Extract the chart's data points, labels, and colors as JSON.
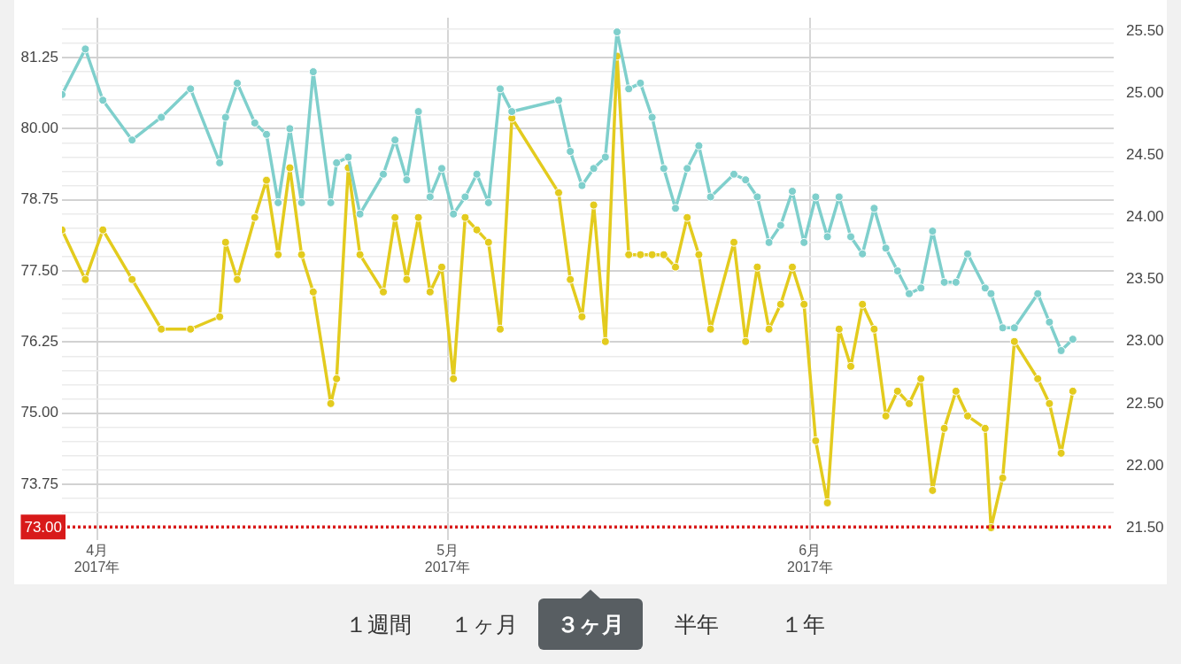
{
  "chart_data": [
    {
      "type": "line",
      "marker": "circle",
      "line_style": "solid",
      "grid": true,
      "legend": false,
      "x": [
        "2017-03-29",
        "2017-03-31",
        "2017-04-01T12:00",
        "2017-04-04",
        "2017-04-06T12:00",
        "2017-04-09",
        "2017-04-11T12:00",
        "2017-04-12",
        "2017-04-13",
        "2017-04-14T12:00",
        "2017-04-15T12:00",
        "2017-04-16T12:00",
        "2017-04-17T12:00",
        "2017-04-18T12:00",
        "2017-04-19T12:00",
        "2017-04-21",
        "2017-04-21T12:00",
        "2017-04-22T12:00",
        "2017-04-23T12:00",
        "2017-04-25T12:00",
        "2017-04-26T12:00",
        "2017-04-27T12:00",
        "2017-04-28T12:00",
        "2017-04-29T12:00",
        "2017-04-30T12:00",
        "2017-05-01T12:00",
        "2017-05-02T12:00",
        "2017-05-03T12:00",
        "2017-05-04T12:00",
        "2017-05-05T12:00",
        "2017-05-06T12:00",
        "2017-05-10T12:00",
        "2017-05-11T12:00",
        "2017-05-12T12:00",
        "2017-05-13T12:00",
        "2017-05-14T12:00",
        "2017-05-15T12:00",
        "2017-05-16T12:00",
        "2017-05-17T12:00",
        "2017-05-18T12:00",
        "2017-05-19T12:00",
        "2017-05-20T12:00",
        "2017-05-21T12:00",
        "2017-05-22T12:00",
        "2017-05-23T12:00",
        "2017-05-25T12:00",
        "2017-05-26T12:00",
        "2017-05-27T12:00",
        "2017-05-28T12:00",
        "2017-05-29T12:00",
        "2017-05-30T12:00",
        "2017-05-31T12:00",
        "2017-06-01T12:00",
        "2017-06-02T12:00",
        "2017-06-03T12:00",
        "2017-06-04T12:00",
        "2017-06-05T12:00",
        "2017-06-06T12:00",
        "2017-06-07T12:00",
        "2017-06-08T12:00",
        "2017-06-09T12:00",
        "2017-06-10T12:00",
        "2017-06-11T12:00",
        "2017-06-12T12:00",
        "2017-06-13T12:00",
        "2017-06-14T12:00",
        "2017-06-16",
        "2017-06-16T12:00",
        "2017-06-17T12:00",
        "2017-06-18T12:00",
        "2017-06-20T12:00",
        "2017-06-21T12:00",
        "2017-06-22T12:00",
        "2017-06-23T12:00"
      ],
      "series": [
        {
          "color": "#7fcfcc",
          "values": [
            80.6,
            81.4,
            80.5,
            79.8,
            80.2,
            80.7,
            79.4,
            80.2,
            80.8,
            80.1,
            79.9,
            78.7,
            80.0,
            78.7,
            81.0,
            78.7,
            79.4,
            79.5,
            78.5,
            79.2,
            79.8,
            79.1,
            80.3,
            78.8,
            79.3,
            78.5,
            78.8,
            79.2,
            78.7,
            80.7,
            80.3,
            80.5,
            79.6,
            79.0,
            79.3,
            79.5,
            81.7,
            80.7,
            80.8,
            80.2,
            79.3,
            78.6,
            79.3,
            79.7,
            78.8,
            79.2,
            79.1,
            78.8,
            78.0,
            78.3,
            78.9,
            78.0,
            78.8,
            78.1,
            78.8,
            78.1,
            77.8,
            78.6,
            77.9,
            77.5,
            77.1,
            77.2,
            78.2,
            77.3,
            77.3,
            77.8,
            77.2,
            77.1,
            76.5,
            76.5,
            77.1,
            76.6,
            76.1,
            76.3
          ]
        },
        {
          "color": "#e3cb1e",
          "axis": "y2",
          "values": [
            23.9,
            23.5,
            23.9,
            23.5,
            23.1,
            23.1,
            23.2,
            23.8,
            23.5,
            24.0,
            24.3,
            23.7,
            24.4,
            23.7,
            23.4,
            22.5,
            22.7,
            24.4,
            23.7,
            23.4,
            24.0,
            23.5,
            24.0,
            23.4,
            23.6,
            22.7,
            24.0,
            23.9,
            23.8,
            23.1,
            24.8,
            24.2,
            23.5,
            23.2,
            24.1,
            23.0,
            25.3,
            23.7,
            23.7,
            23.7,
            23.7,
            23.6,
            24.0,
            23.7,
            23.1,
            23.8,
            23.0,
            23.6,
            23.1,
            23.3,
            23.6,
            23.3,
            22.2,
            21.7,
            23.1,
            22.8,
            23.3,
            23.1,
            22.4,
            22.6,
            22.5,
            22.7,
            21.8,
            22.3,
            22.6,
            22.4,
            22.3,
            21.5,
            21.9,
            23.0,
            22.7,
            22.5,
            22.1,
            22.6
          ]
        }
      ],
      "xlim": [
        "2017-03-29",
        "2017-06-27"
      ],
      "xticks": [
        {
          "value": "2017-04-01",
          "label": "4月\n2017年"
        },
        {
          "value": "2017-05-01",
          "label": "5月\n2017年"
        },
        {
          "value": "2017-06-01",
          "label": "6月\n2017年"
        }
      ],
      "ylim": [
        72.77,
        81.95
      ],
      "yticks": [
        {
          "value": 73.25,
          "label": null
        },
        {
          "value": 73.5,
          "label": null
        },
        {
          "value": 73.75,
          "label": "73.75"
        },
        {
          "value": 74,
          "label": null
        },
        {
          "value": 74.25,
          "label": null
        },
        {
          "value": 74.5,
          "label": null
        },
        {
          "value": 74.75,
          "label": null
        },
        {
          "value": 75,
          "label": "75.00"
        },
        {
          "value": 75.25,
          "label": null
        },
        {
          "value": 75.5,
          "label": null
        },
        {
          "value": 75.75,
          "label": null
        },
        {
          "value": 76,
          "label": null
        },
        {
          "value": 76.25,
          "label": "76.25"
        },
        {
          "value": 76.5,
          "label": null
        },
        {
          "value": 76.75,
          "label": null
        },
        {
          "value": 77,
          "label": null
        },
        {
          "value": 77.25,
          "label": null
        },
        {
          "value": 77.5,
          "label": "77.50"
        },
        {
          "value": 77.75,
          "label": null
        },
        {
          "value": 78,
          "label": null
        },
        {
          "value": 78.25,
          "label": null
        },
        {
          "value": 78.5,
          "label": null
        },
        {
          "value": 78.75,
          "label": "78.75"
        },
        {
          "value": 79,
          "label": null
        },
        {
          "value": 79.25,
          "label": null
        },
        {
          "value": 79.5,
          "label": null
        },
        {
          "value": 79.75,
          "label": null
        },
        {
          "value": 80,
          "label": "80.00"
        },
        {
          "value": 80.25,
          "label": null
        },
        {
          "value": 80.5,
          "label": null
        },
        {
          "value": 80.75,
          "label": null
        },
        {
          "value": 81,
          "label": null
        },
        {
          "value": 81.25,
          "label": "81.25"
        },
        {
          "value": 81.5,
          "label": null
        },
        {
          "value": 81.75,
          "label": null
        }
      ],
      "y2lim": [
        21.4,
        25.61
      ],
      "y2ticks": [
        {
          "value": 21.5,
          "label": "21.50"
        },
        {
          "value": 22,
          "label": "22.00"
        },
        {
          "value": 22.5,
          "label": "22.50"
        },
        {
          "value": 23,
          "label": "23.00"
        },
        {
          "value": 23.5,
          "label": "23.50"
        },
        {
          "value": 24,
          "label": "24.00"
        },
        {
          "value": 24.5,
          "label": "24.50"
        },
        {
          "value": 25,
          "label": "25.00"
        },
        {
          "value": 25.5,
          "label": "25.50"
        }
      ],
      "ref_lines": [
        {
          "axis": "y",
          "value": 73,
          "label": "73.00",
          "color": "#d81a1a",
          "line_style": "dotted"
        }
      ]
    },
    {
      "type": "other",
      "categories": [
        "１週間",
        "１ヶ月",
        "３ヶ月",
        "半年",
        "１年"
      ],
      "colors": [
        "#f1f1f1",
        "#f1f1f1",
        "#585e62",
        "#f1f1f1",
        "#f1f1f1"
      ]
    }
  ]
}
